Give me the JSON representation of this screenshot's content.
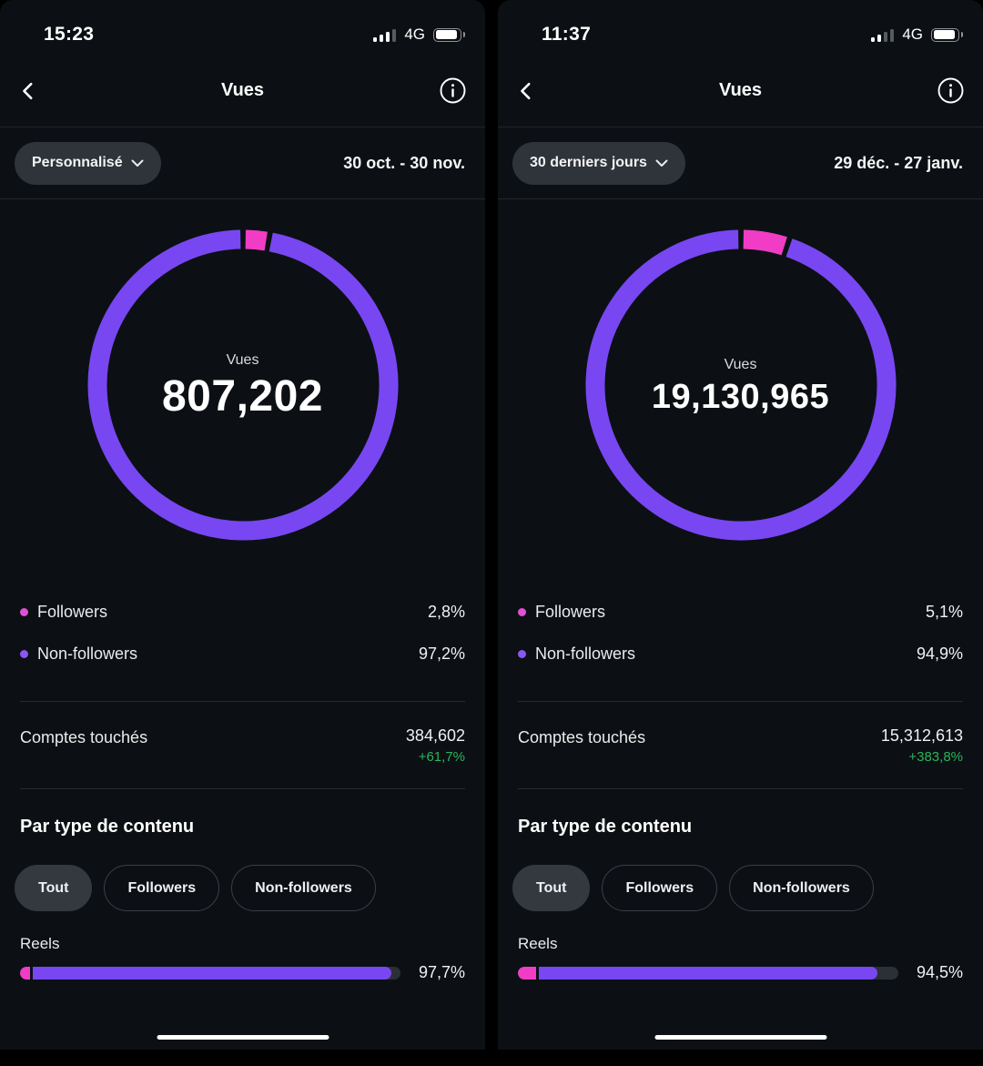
{
  "colors": {
    "purple": "#7847F2",
    "pink": "#F13DC6",
    "pink_dot": "#E24FD6",
    "purple_dot": "#8A56F4",
    "green": "#2BB45B"
  },
  "panels": [
    {
      "status": {
        "time": "15:23",
        "network": "4G",
        "signal_bars": 3
      },
      "header": {
        "title": "Vues"
      },
      "filter": {
        "dropdown_label": "Personnalisé",
        "date_range": "30 oct. - 30 nov."
      },
      "donut": {
        "center_label": "Vues",
        "center_value": "807,202",
        "followers_pct": 2.8,
        "non_followers_pct": 97.2
      },
      "legend": [
        {
          "label": "Followers",
          "value": "2,8%"
        },
        {
          "label": "Non-followers",
          "value": "97,2%"
        }
      ],
      "reached": {
        "label": "Comptes touchés",
        "value": "384,602",
        "delta": "+61,7%"
      },
      "by_content": {
        "heading": "Par type de contenu",
        "tabs": [
          {
            "label": "Tout",
            "selected": true
          },
          {
            "label": "Followers",
            "selected": false
          },
          {
            "label": "Non-followers",
            "selected": false
          }
        ],
        "rows": [
          {
            "label": "Reels",
            "value": "97,7%",
            "value_pct": 97.7,
            "followers_pct": 2.8
          }
        ]
      }
    },
    {
      "status": {
        "time": "11:37",
        "network": "4G",
        "signal_bars": 2
      },
      "header": {
        "title": "Vues"
      },
      "filter": {
        "dropdown_label": "30 derniers jours",
        "date_range": "29 déc. - 27 janv."
      },
      "donut": {
        "center_label": "Vues",
        "center_value": "19,130,965",
        "followers_pct": 5.1,
        "non_followers_pct": 94.9
      },
      "legend": [
        {
          "label": "Followers",
          "value": "5,1%"
        },
        {
          "label": "Non-followers",
          "value": "94,9%"
        }
      ],
      "reached": {
        "label": "Comptes touchés",
        "value": "15,312,613",
        "delta": "+383,8%"
      },
      "by_content": {
        "heading": "Par type de contenu",
        "tabs": [
          {
            "label": "Tout",
            "selected": true
          },
          {
            "label": "Followers",
            "selected": false
          },
          {
            "label": "Non-followers",
            "selected": false
          }
        ],
        "rows": [
          {
            "label": "Reels",
            "value": "94,5%",
            "value_pct": 94.5,
            "followers_pct": 5.1
          }
        ]
      }
    }
  ]
}
